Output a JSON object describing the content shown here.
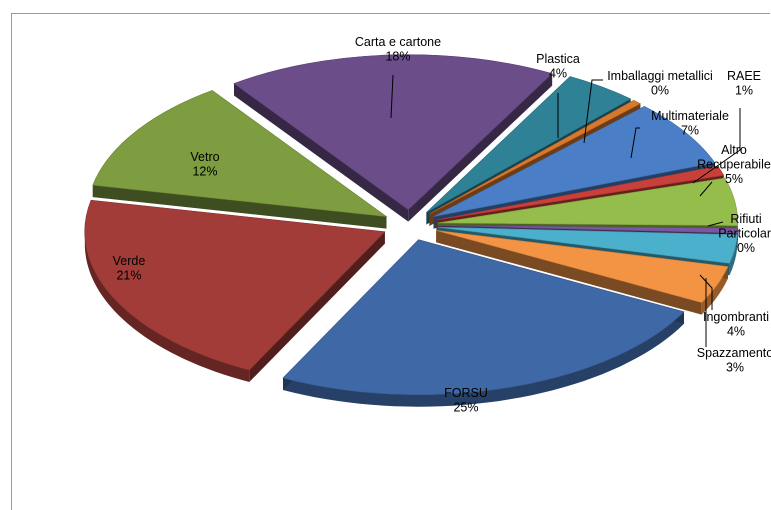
{
  "chart_data": {
    "type": "pie",
    "title": "",
    "slices": [
      {
        "name": "Carta e cartone",
        "value": 18,
        "label": "18%",
        "color": "#6b4d8a"
      },
      {
        "name": "Plastica",
        "value": 4,
        "label": "4%",
        "color": "#2f8196"
      },
      {
        "name": "Imballaggi metallici",
        "value": 0,
        "label": "0%",
        "color": "#d8782d"
      },
      {
        "name": "Multimateriale",
        "value": 7,
        "label": "7%",
        "color": "#4a7ec6"
      },
      {
        "name": "RAEE",
        "value": 1,
        "label": "1%",
        "color": "#c9403a"
      },
      {
        "name": "Altro Recuperabile",
        "value": 5,
        "label": "5%",
        "color": "#95bd4b"
      },
      {
        "name": "Rifiuti Particolari",
        "value": 0,
        "label": "0%",
        "color": "#7a58a0"
      },
      {
        "name": "Spazzamento",
        "value": 3,
        "label": "3%",
        "color": "#4bb0cc"
      },
      {
        "name": "Ingombranti",
        "value": 4,
        "label": "4%",
        "color": "#f39444"
      },
      {
        "name": "FORSU",
        "value": 25,
        "label": "25%",
        "color": "#3f68a6"
      },
      {
        "name": "Verde",
        "value": 21,
        "label": "21%",
        "color": "#a23c38"
      },
      {
        "name": "Vetro",
        "value": 12,
        "label": "12%",
        "color": "#7e9c40"
      }
    ],
    "display_labels": {
      "carta": {
        "name_lines": [
          "Carta e cartone"
        ],
        "pct": "18%"
      },
      "plastica": {
        "name_lines": [
          "Plastica"
        ],
        "pct": "4%"
      },
      "imballaggi": {
        "name_lines": [
          "Imballaggi metallici"
        ],
        "pct": "0%"
      },
      "raee": {
        "name_lines": [
          "RAEE"
        ],
        "pct": "1%"
      },
      "multi": {
        "name_lines": [
          "Multimateriale"
        ],
        "pct": "7%"
      },
      "altro": {
        "name_lines": [
          "Altro",
          "Recuperabile"
        ],
        "pct": "5%"
      },
      "rifiuti": {
        "name_lines": [
          "Rifiuti",
          "Particolari"
        ],
        "pct": "0%"
      },
      "ingombranti": {
        "name_lines": [
          "Ingombranti"
        ],
        "pct": "4%"
      },
      "spazzamento": {
        "name_lines": [
          "Spazzamento"
        ],
        "pct": "3%"
      },
      "forsu": {
        "name_lines": [
          "FORSU"
        ],
        "pct": "25%"
      },
      "verde": {
        "name_lines": [
          "Verde"
        ],
        "pct": "21%"
      },
      "vetro": {
        "name_lines": [
          "Vetro"
        ],
        "pct": "12%"
      }
    },
    "style": "3d-exploded-pie",
    "legend": "none"
  }
}
